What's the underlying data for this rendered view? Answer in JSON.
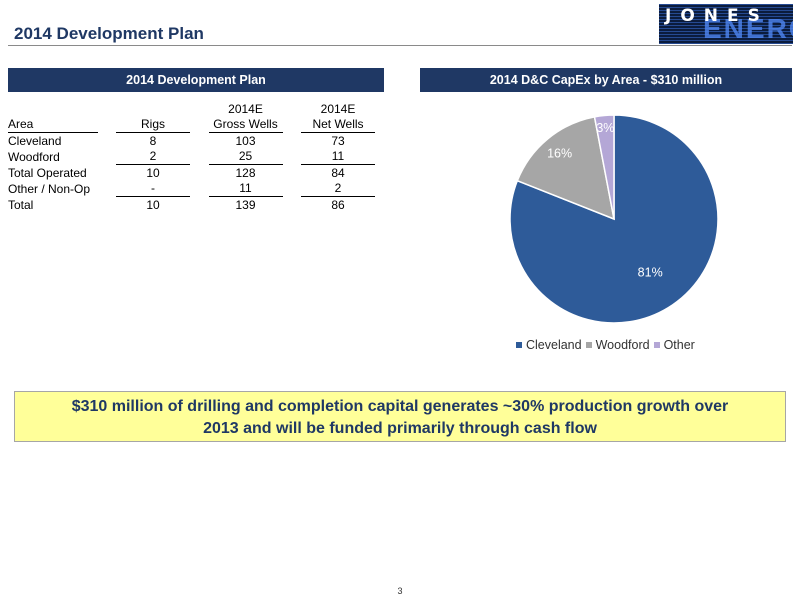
{
  "header": {
    "title": "2014 Development Plan",
    "logo_text": "JONES",
    "logo_bg_text": "ENERGY"
  },
  "sections": {
    "left_title": "2014 Development Plan",
    "right_title": "2014 D&C CapEx by Area - $310 million"
  },
  "table": {
    "headers": {
      "area": "Area",
      "rigs": "Rigs",
      "gross_top": "2014E",
      "gross_bottom": "Gross Wells",
      "net_top": "2014E",
      "net_bottom": "Net Wells"
    },
    "rows": [
      {
        "area": "Cleveland",
        "rigs": "8",
        "gross": "103",
        "net": "73"
      },
      {
        "area": "Woodford",
        "rigs": "2",
        "gross": "25",
        "net": "11"
      },
      {
        "area": "Total Operated",
        "rigs": "10",
        "gross": "128",
        "net": "84"
      },
      {
        "area": "Other / Non-Op",
        "rigs": "-",
        "gross": "11",
        "net": "2"
      },
      {
        "area": "Total",
        "rigs": "10",
        "gross": "139",
        "net": "86"
      }
    ]
  },
  "chart_data": {
    "type": "pie",
    "title": "2014 D&C CapEx by Area - $310 million",
    "categories": [
      "Cleveland",
      "Woodford",
      "Other"
    ],
    "values": [
      81,
      16,
      3
    ],
    "labels": [
      "81%",
      "16%",
      "3%"
    ],
    "colors": [
      "#2e5b99",
      "#a6a6a6",
      "#b4a7d6"
    ],
    "legend": "bottom"
  },
  "callout": {
    "line1": "$310 million of drilling and completion capital generates ~30% production growth over",
    "line2": "2013 and will be funded primarily through cash flow"
  },
  "footer": {
    "page_number": "3"
  }
}
